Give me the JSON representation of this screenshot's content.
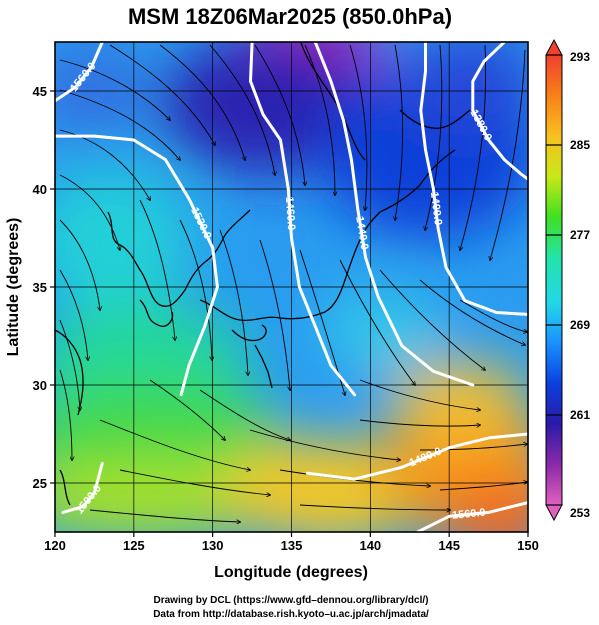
{
  "title": "MSM 18Z06Mar2025 (850.0hPa)",
  "xlabel": "Longitude (degrees)",
  "ylabel": "Latitude  (degrees)",
  "credits": [
    "Drawing by DCL (https://www.gfd–dennou.org/library/dcl/)",
    "Data from http://database.rish.kyoto–u.ac.jp/arch/jmadata/"
  ],
  "chart_data": {
    "type": "heatmap",
    "x_range": [
      120,
      150
    ],
    "y_range": [
      22.5,
      47.5
    ],
    "x_ticks": [
      "120",
      "125",
      "130",
      "135",
      "140",
      "145",
      "150"
    ],
    "y_ticks": [
      "25",
      "30",
      "35",
      "40",
      "45"
    ],
    "colorbar": {
      "min": 253,
      "max": 293,
      "ticks": [
        "293",
        "285",
        "277",
        "269",
        "261",
        "253"
      ],
      "colors": [
        "#e060c0",
        "#8a2aa8",
        "#2a1aa8",
        "#0a40e0",
        "#1a90ff",
        "#22d8e8",
        "#22e4a8",
        "#40e020",
        "#c8e818",
        "#f8c020",
        "#f88018",
        "#f04030"
      ]
    },
    "contours": [
      {
        "label": "1560.0",
        "pts": [
          [
            120,
            44.5
          ],
          [
            121.3,
            45.2
          ],
          [
            122.3,
            46.2
          ],
          [
            123,
            47.5
          ]
        ]
      },
      {
        "label": "1530.0",
        "pts": [
          [
            120,
            42.7
          ],
          [
            122.5,
            42.7
          ],
          [
            125,
            42.5
          ],
          [
            127,
            41.5
          ],
          [
            128.5,
            39.5
          ],
          [
            130,
            37
          ],
          [
            130.3,
            35
          ],
          [
            129.5,
            33
          ],
          [
            128.5,
            31
          ],
          [
            128,
            29.5
          ]
        ]
      },
      {
        "label": "1500.0",
        "pts": [
          [
            120.5,
            23.5
          ],
          [
            121.8,
            23.8
          ],
          [
            122.5,
            24.5
          ],
          [
            123,
            26
          ]
        ]
      },
      {
        "label": "1460.0",
        "pts": [
          [
            132.5,
            47.5
          ],
          [
            132.4,
            45.5
          ],
          [
            133.2,
            43.8
          ],
          [
            134.3,
            42.5
          ],
          [
            134.8,
            40
          ],
          [
            135,
            37.5
          ],
          [
            135.5,
            35
          ],
          [
            136.5,
            33
          ],
          [
            137.5,
            31
          ],
          [
            139,
            29.5
          ]
        ]
      },
      {
        "label": "1440.0",
        "pts": [
          [
            136.5,
            47.5
          ],
          [
            137.5,
            45.5
          ],
          [
            138.3,
            43.5
          ],
          [
            138.8,
            41.5
          ],
          [
            139.2,
            39
          ],
          [
            139.7,
            36.5
          ],
          [
            140.5,
            34.5
          ],
          [
            142,
            32
          ],
          [
            144,
            30.7
          ],
          [
            146.5,
            30
          ]
        ]
      },
      {
        "label": "1400.0",
        "pts": [
          [
            143.5,
            47.5
          ],
          [
            143.5,
            46
          ],
          [
            143.2,
            44
          ],
          [
            143.5,
            42
          ],
          [
            144,
            40
          ],
          [
            144.3,
            38
          ],
          [
            144.8,
            36
          ],
          [
            146,
            34.3
          ],
          [
            148,
            33.7
          ],
          [
            150,
            33.6
          ]
        ]
      },
      {
        "label": "1380.0",
        "pts": [
          [
            148.5,
            47.5
          ],
          [
            147.2,
            46.5
          ],
          [
            146.5,
            45.5
          ],
          [
            146.5,
            44
          ],
          [
            147.5,
            42.5
          ],
          [
            148.5,
            41.5
          ],
          [
            149.5,
            40.8
          ],
          [
            150,
            40.5
          ]
        ]
      },
      {
        "label": "1480.0",
        "pts": [
          [
            136,
            25.5
          ],
          [
            139,
            25.2
          ],
          [
            142,
            25.8
          ],
          [
            145,
            26.8
          ],
          [
            147.5,
            27.3
          ],
          [
            150,
            27.5
          ]
        ]
      },
      {
        "label": "1560.0",
        "pts": [
          [
            143,
            22.5
          ],
          [
            145,
            23.3
          ],
          [
            147.5,
            23.5
          ],
          [
            150,
            24
          ]
        ]
      }
    ]
  }
}
